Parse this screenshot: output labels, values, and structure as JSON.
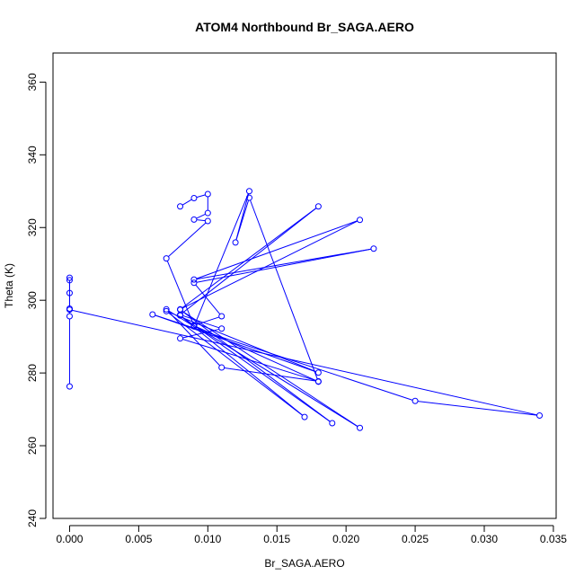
{
  "chart_data": {
    "type": "line",
    "title": "ATOM4 Northbound Br_SAGA.AERO",
    "xlabel": "Br_SAGA.AERO",
    "ylabel": "Theta (K)",
    "xlim": [
      -0.0012,
      0.0352
    ],
    "ylim": [
      240,
      368
    ],
    "x_ticks": [
      0.0,
      0.005,
      0.01,
      0.015,
      0.02,
      0.025,
      0.03,
      0.035
    ],
    "x_tick_labels": [
      "0.000",
      "0.005",
      "0.010",
      "0.015",
      "0.020",
      "0.025",
      "0.030",
      "0.035"
    ],
    "y_ticks": [
      240,
      260,
      280,
      300,
      320,
      340,
      360
    ],
    "y_tick_labels": [
      "240",
      "260",
      "280",
      "300",
      "320",
      "340",
      "360"
    ],
    "grid": false,
    "color": "#0000ff",
    "series": [
      {
        "points": [
          [
            0.0,
            276.3
          ],
          [
            0.0,
            295.6
          ],
          [
            0.0,
            297.7
          ],
          [
            0.0,
            302.0
          ],
          [
            0.0,
            305.5
          ],
          [
            0.0,
            306.2
          ],
          [
            0.0,
            297.4
          ],
          [
            0.034,
            268.3
          ],
          [
            0.025,
            272.3
          ],
          [
            0.006,
            296.1
          ],
          [
            0.018,
            280.1
          ],
          [
            0.007,
            297.0
          ],
          [
            0.017,
            267.9
          ],
          [
            0.008,
            295.8
          ],
          [
            0.019,
            266.2
          ],
          [
            0.008,
            297.4
          ],
          [
            0.021,
            264.9
          ],
          [
            0.009,
            293.1
          ],
          [
            0.011,
            295.6
          ],
          [
            0.009,
            304.8
          ],
          [
            0.022,
            314.2
          ],
          [
            0.009,
            305.7
          ],
          [
            0.021,
            322.1
          ],
          [
            0.008,
            297.5
          ],
          [
            0.018,
            325.8
          ],
          [
            0.008,
            296.0
          ],
          [
            0.011,
            292.2
          ],
          [
            0.008,
            289.5
          ],
          [
            0.018,
            277.7
          ],
          [
            0.011,
            281.5
          ],
          [
            0.007,
            297.5
          ],
          [
            0.009,
            292.8
          ],
          [
            0.013,
            330.0
          ],
          [
            0.012,
            315.9
          ],
          [
            0.013,
            328.2
          ],
          [
            0.018,
            277.6
          ],
          [
            0.009,
            293.0
          ],
          [
            0.007,
            311.5
          ],
          [
            0.01,
            321.8
          ],
          [
            0.009,
            322.2
          ],
          [
            0.01,
            324.0
          ],
          [
            0.01,
            329.2
          ],
          [
            0.009,
            328.1
          ],
          [
            0.008,
            325.8
          ]
        ]
      }
    ]
  }
}
